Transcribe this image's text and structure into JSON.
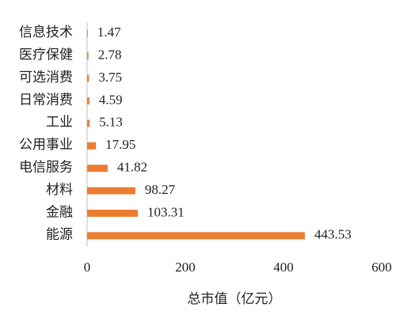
{
  "chart_data": {
    "type": "bar",
    "orientation": "horizontal",
    "categories": [
      "信息技术",
      "医疗保健",
      "可选消费",
      "日常消费",
      "工业",
      "公用事业",
      "电信服务",
      "材料",
      "金融",
      "能源"
    ],
    "values": [
      1.47,
      2.78,
      3.75,
      4.59,
      5.13,
      17.95,
      41.82,
      98.27,
      103.31,
      443.53
    ],
    "color": "#ed7d31",
    "x_label": "总市值（亿元）",
    "xlim": [
      0,
      600
    ],
    "xticks": [
      0,
      200,
      400,
      600
    ],
    "grid": false
  }
}
